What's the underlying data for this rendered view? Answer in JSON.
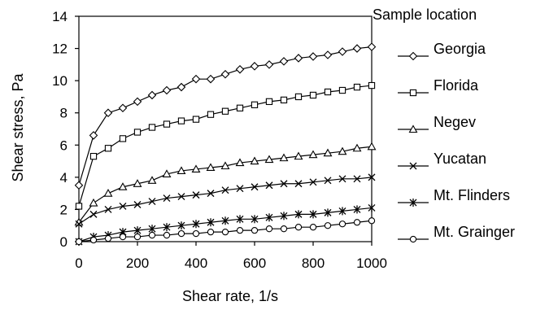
{
  "chart_data": {
    "type": "line",
    "title": "",
    "xlabel": "Shear rate, 1/s",
    "ylabel": "Shear stress, Pa",
    "xlim": [
      0,
      1000
    ],
    "ylim": [
      0,
      14
    ],
    "xticks": [
      "0",
      "200",
      "400",
      "600",
      "800",
      "1000"
    ],
    "yticks": [
      "0",
      "2",
      "4",
      "6",
      "8",
      "10",
      "12",
      "14"
    ],
    "grid": false,
    "legend_title": "Sample location",
    "legend_position": "right",
    "x": [
      0,
      50,
      100,
      150,
      200,
      250,
      300,
      350,
      400,
      450,
      500,
      550,
      600,
      650,
      700,
      750,
      800,
      850,
      900,
      950,
      1000
    ],
    "series": [
      {
        "name": "Georgia",
        "marker": "diamond",
        "values": [
          3.5,
          6.6,
          8.0,
          8.3,
          8.7,
          9.1,
          9.4,
          9.6,
          10.1,
          10.1,
          10.4,
          10.7,
          10.9,
          11.0,
          11.2,
          11.4,
          11.5,
          11.6,
          11.8,
          12.0,
          12.1
        ]
      },
      {
        "name": "Florida",
        "marker": "square",
        "values": [
          2.2,
          5.3,
          5.8,
          6.4,
          6.8,
          7.1,
          7.3,
          7.5,
          7.6,
          7.9,
          8.1,
          8.3,
          8.5,
          8.7,
          8.8,
          9.0,
          9.1,
          9.3,
          9.4,
          9.6,
          9.7
        ]
      },
      {
        "name": "Negev",
        "marker": "triangle",
        "values": [
          1.2,
          2.4,
          3.0,
          3.4,
          3.6,
          3.8,
          4.2,
          4.4,
          4.5,
          4.6,
          4.7,
          4.9,
          5.0,
          5.1,
          5.2,
          5.3,
          5.4,
          5.5,
          5.6,
          5.8,
          5.9
        ]
      },
      {
        "name": "Yucatan",
        "marker": "x",
        "values": [
          1.1,
          1.7,
          2.0,
          2.2,
          2.3,
          2.5,
          2.7,
          2.8,
          2.9,
          3.0,
          3.2,
          3.3,
          3.4,
          3.5,
          3.6,
          3.6,
          3.7,
          3.8,
          3.9,
          3.9,
          4.0
        ]
      },
      {
        "name": "Mt. Flinders",
        "marker": "asterisk",
        "values": [
          0.0,
          0.3,
          0.4,
          0.6,
          0.7,
          0.8,
          0.9,
          1.0,
          1.1,
          1.2,
          1.3,
          1.4,
          1.4,
          1.5,
          1.6,
          1.7,
          1.7,
          1.8,
          1.9,
          2.0,
          2.1
        ]
      },
      {
        "name": "Mt. Grainger",
        "marker": "circle",
        "values": [
          0.0,
          0.1,
          0.2,
          0.3,
          0.3,
          0.4,
          0.4,
          0.5,
          0.5,
          0.6,
          0.6,
          0.7,
          0.7,
          0.8,
          0.8,
          0.9,
          0.9,
          1.0,
          1.1,
          1.2,
          1.3
        ]
      }
    ]
  }
}
